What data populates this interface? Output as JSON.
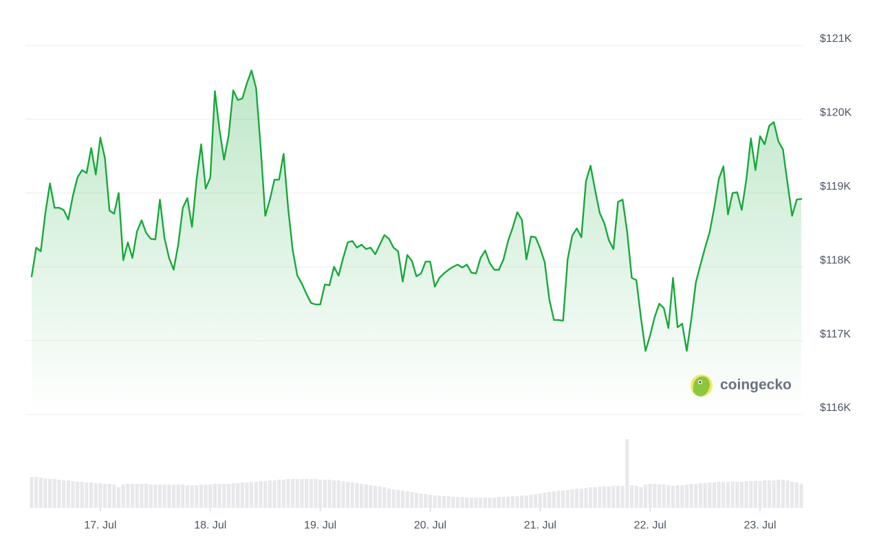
{
  "chart_data": {
    "type": "line",
    "color": "#16a83a",
    "grid": true,
    "y_axis_side": "right",
    "watermark": "coingecko",
    "categories": [
      null,
      null,
      null,
      null,
      null,
      null,
      null,
      null,
      null,
      null,
      null,
      null,
      null,
      null,
      null,
      "17. Jul",
      null,
      null,
      null,
      null,
      null,
      null,
      null,
      null,
      null,
      null,
      null,
      null,
      null,
      null,
      null,
      null,
      null,
      null,
      null,
      null,
      null,
      null,
      null,
      "18. Jul",
      null,
      null,
      null,
      null,
      null,
      null,
      null,
      null,
      null,
      null,
      null,
      null,
      null,
      null,
      null,
      null,
      null,
      null,
      null,
      null,
      null,
      null,
      null,
      "19. Jul",
      null,
      null,
      null,
      null,
      null,
      null,
      null,
      null,
      null,
      null,
      null,
      null,
      null,
      null,
      null,
      null,
      null,
      null,
      null,
      null,
      null,
      null,
      null,
      "20. Jul",
      null,
      null,
      null,
      null,
      null,
      null,
      null,
      null,
      null,
      null,
      null,
      null,
      null,
      null,
      null,
      null,
      null,
      null,
      null,
      null,
      null,
      null,
      null,
      "21. Jul",
      null,
      null,
      null,
      null,
      null,
      null,
      null,
      null,
      null,
      null,
      null,
      null,
      null,
      null,
      null,
      null,
      null,
      null,
      null,
      null,
      null,
      null,
      null,
      "22. Jul",
      null,
      null,
      null,
      null,
      null,
      null,
      null,
      null,
      null,
      null,
      null,
      null,
      null,
      null,
      null,
      null,
      null,
      null,
      null,
      null,
      null,
      null,
      null,
      "23. Jul",
      null,
      null,
      null,
      null,
      null,
      null,
      null,
      null,
      null
    ],
    "values": [
      117870,
      118260,
      118210,
      118730,
      119130,
      118800,
      118800,
      118770,
      118640,
      118960,
      119210,
      119310,
      119270,
      119610,
      119250,
      119750,
      119470,
      118760,
      118720,
      119000,
      118090,
      118330,
      118120,
      118480,
      118630,
      118460,
      118380,
      118370,
      118910,
      118390,
      118120,
      117960,
      118300,
      118800,
      118930,
      118540,
      119180,
      119660,
      119060,
      119210,
      120380,
      119860,
      119450,
      119780,
      120390,
      120260,
      120280,
      120490,
      120660,
      120420,
      119610,
      118690,
      118910,
      119180,
      119180,
      119530,
      118790,
      118220,
      117880,
      117770,
      117630,
      117510,
      117490,
      117490,
      117760,
      117750,
      118000,
      117880,
      118120,
      118330,
      118350,
      118260,
      118300,
      118240,
      118260,
      118170,
      118300,
      118430,
      118380,
      118260,
      118210,
      117800,
      118160,
      118080,
      117870,
      117910,
      118070,
      118070,
      117730,
      117850,
      117910,
      117960,
      118000,
      118030,
      117990,
      118030,
      117920,
      117910,
      118120,
      118220,
      118050,
      117960,
      117960,
      118100,
      118350,
      118530,
      118740,
      118640,
      118100,
      118410,
      118400,
      118250,
      118060,
      117560,
      117280,
      117280,
      117270,
      118100,
      118420,
      118520,
      118400,
      119160,
      119370,
      119040,
      118730,
      118590,
      118360,
      118240,
      118880,
      118910,
      118470,
      117850,
      117820,
      117310,
      116860,
      117070,
      117320,
      117500,
      117440,
      117170,
      117850,
      117180,
      117230,
      116860,
      117290,
      117790,
      118030,
      118260,
      118470,
      118800,
      119190,
      119360,
      118710,
      119000,
      119010,
      118770,
      119180,
      119740,
      119310,
      119770,
      119660,
      119910,
      119960,
      119700,
      119590,
      119130,
      118690,
      118910,
      118920
    ],
    "ylim": [
      116000,
      121000
    ],
    "yticks": [
      {
        "value": 116000,
        "label": "$116K"
      },
      {
        "value": 117000,
        "label": "$117K"
      },
      {
        "value": 118000,
        "label": "$118K"
      },
      {
        "value": 119000,
        "label": "$119K"
      },
      {
        "value": 120000,
        "label": "$120K"
      },
      {
        "value": 121000,
        "label": "$121K"
      }
    ],
    "volume": {
      "type": "bar",
      "color": "#e8e8ec",
      "values": [
        45,
        45,
        44,
        43,
        42,
        42,
        41,
        40,
        40,
        39,
        38,
        38,
        37,
        37,
        36,
        36,
        35,
        35,
        34,
        30,
        34,
        35,
        35,
        35,
        35,
        35,
        34,
        34,
        34,
        34,
        34,
        34,
        34,
        34,
        33,
        33,
        33,
        34,
        34,
        34,
        35,
        35,
        35,
        35,
        36,
        36,
        37,
        37,
        38,
        38,
        39,
        39,
        40,
        40,
        41,
        41,
        42,
        42,
        42,
        42,
        42,
        42,
        42,
        41,
        41,
        41,
        40,
        40,
        39,
        38,
        37,
        36,
        35,
        34,
        33,
        32,
        31,
        30,
        28,
        27,
        26,
        25,
        24,
        23,
        22,
        21,
        20,
        19,
        18,
        18,
        17,
        17,
        16,
        16,
        16,
        15,
        15,
        15,
        15,
        15,
        15,
        15,
        16,
        16,
        16,
        17,
        17,
        18,
        18,
        19,
        20,
        21,
        22,
        23,
        24,
        25,
        25,
        26,
        27,
        28,
        28,
        29,
        30,
        30,
        31,
        31,
        31,
        32,
        32,
        32,
        100,
        33,
        32,
        30,
        34,
        35,
        35,
        34,
        34,
        33,
        32,
        33,
        33,
        34,
        35,
        35,
        36,
        36,
        37,
        37,
        38,
        38,
        38,
        38,
        38,
        38,
        39,
        39,
        39,
        39,
        40,
        40,
        40,
        41,
        41,
        40,
        38,
        37,
        35
      ]
    }
  }
}
